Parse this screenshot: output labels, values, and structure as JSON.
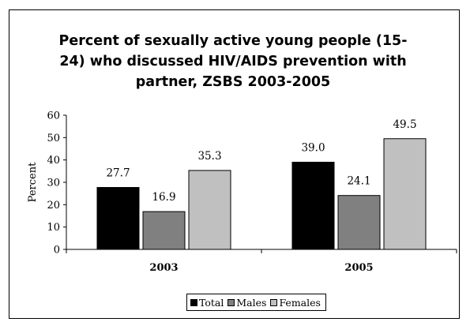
{
  "chart_data": {
    "type": "bar",
    "title_lines": [
      "Percent of sexually active young people (15-",
      "24) who discussed HIV/AIDS prevention with",
      "partner, ZSBS 2003-2005"
    ],
    "categories": [
      "2003",
      "2005"
    ],
    "series": [
      {
        "name": "Total",
        "color": "#000000",
        "values": [
          27.7,
          39.0
        ],
        "labels": [
          "27.7",
          "39.0"
        ]
      },
      {
        "name": "Males",
        "color": "#808080",
        "values": [
          16.9,
          24.1
        ],
        "labels": [
          "16.9",
          "24.1"
        ]
      },
      {
        "name": "Females",
        "color": "#c0c0c0",
        "values": [
          35.3,
          49.5
        ],
        "labels": [
          "35.3",
          "49.5"
        ]
      }
    ],
    "ylabel": "Percent",
    "ylim": [
      0,
      60
    ],
    "yticks": [
      "0",
      "10",
      "20",
      "30",
      "40",
      "50",
      "60"
    ],
    "grid": false,
    "legend_position": "bottom"
  }
}
